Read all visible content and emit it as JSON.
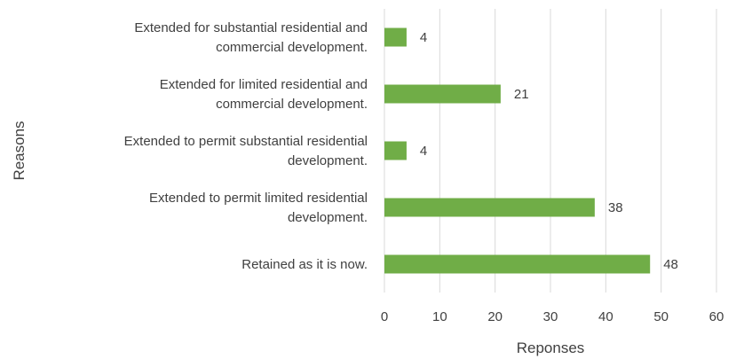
{
  "chart_data": {
    "type": "bar",
    "orientation": "horizontal",
    "categories": [
      [
        "Extended for substantial residential and",
        "commercial development."
      ],
      [
        "Extended for limited residential and",
        "commercial development."
      ],
      [
        "Extended to permit substantial residential",
        "development."
      ],
      [
        "Extended to permit limited residential",
        "development."
      ],
      [
        "Retained as it is now."
      ]
    ],
    "values": [
      4,
      21,
      4,
      38,
      48
    ],
    "xlabel": "Reponses",
    "ylabel": "Reasons",
    "xlim": [
      0,
      60
    ],
    "xticks": [
      0,
      10,
      20,
      30,
      40,
      50,
      60
    ],
    "grid": true,
    "bar_color": "#70ad47",
    "data_labels": true
  }
}
